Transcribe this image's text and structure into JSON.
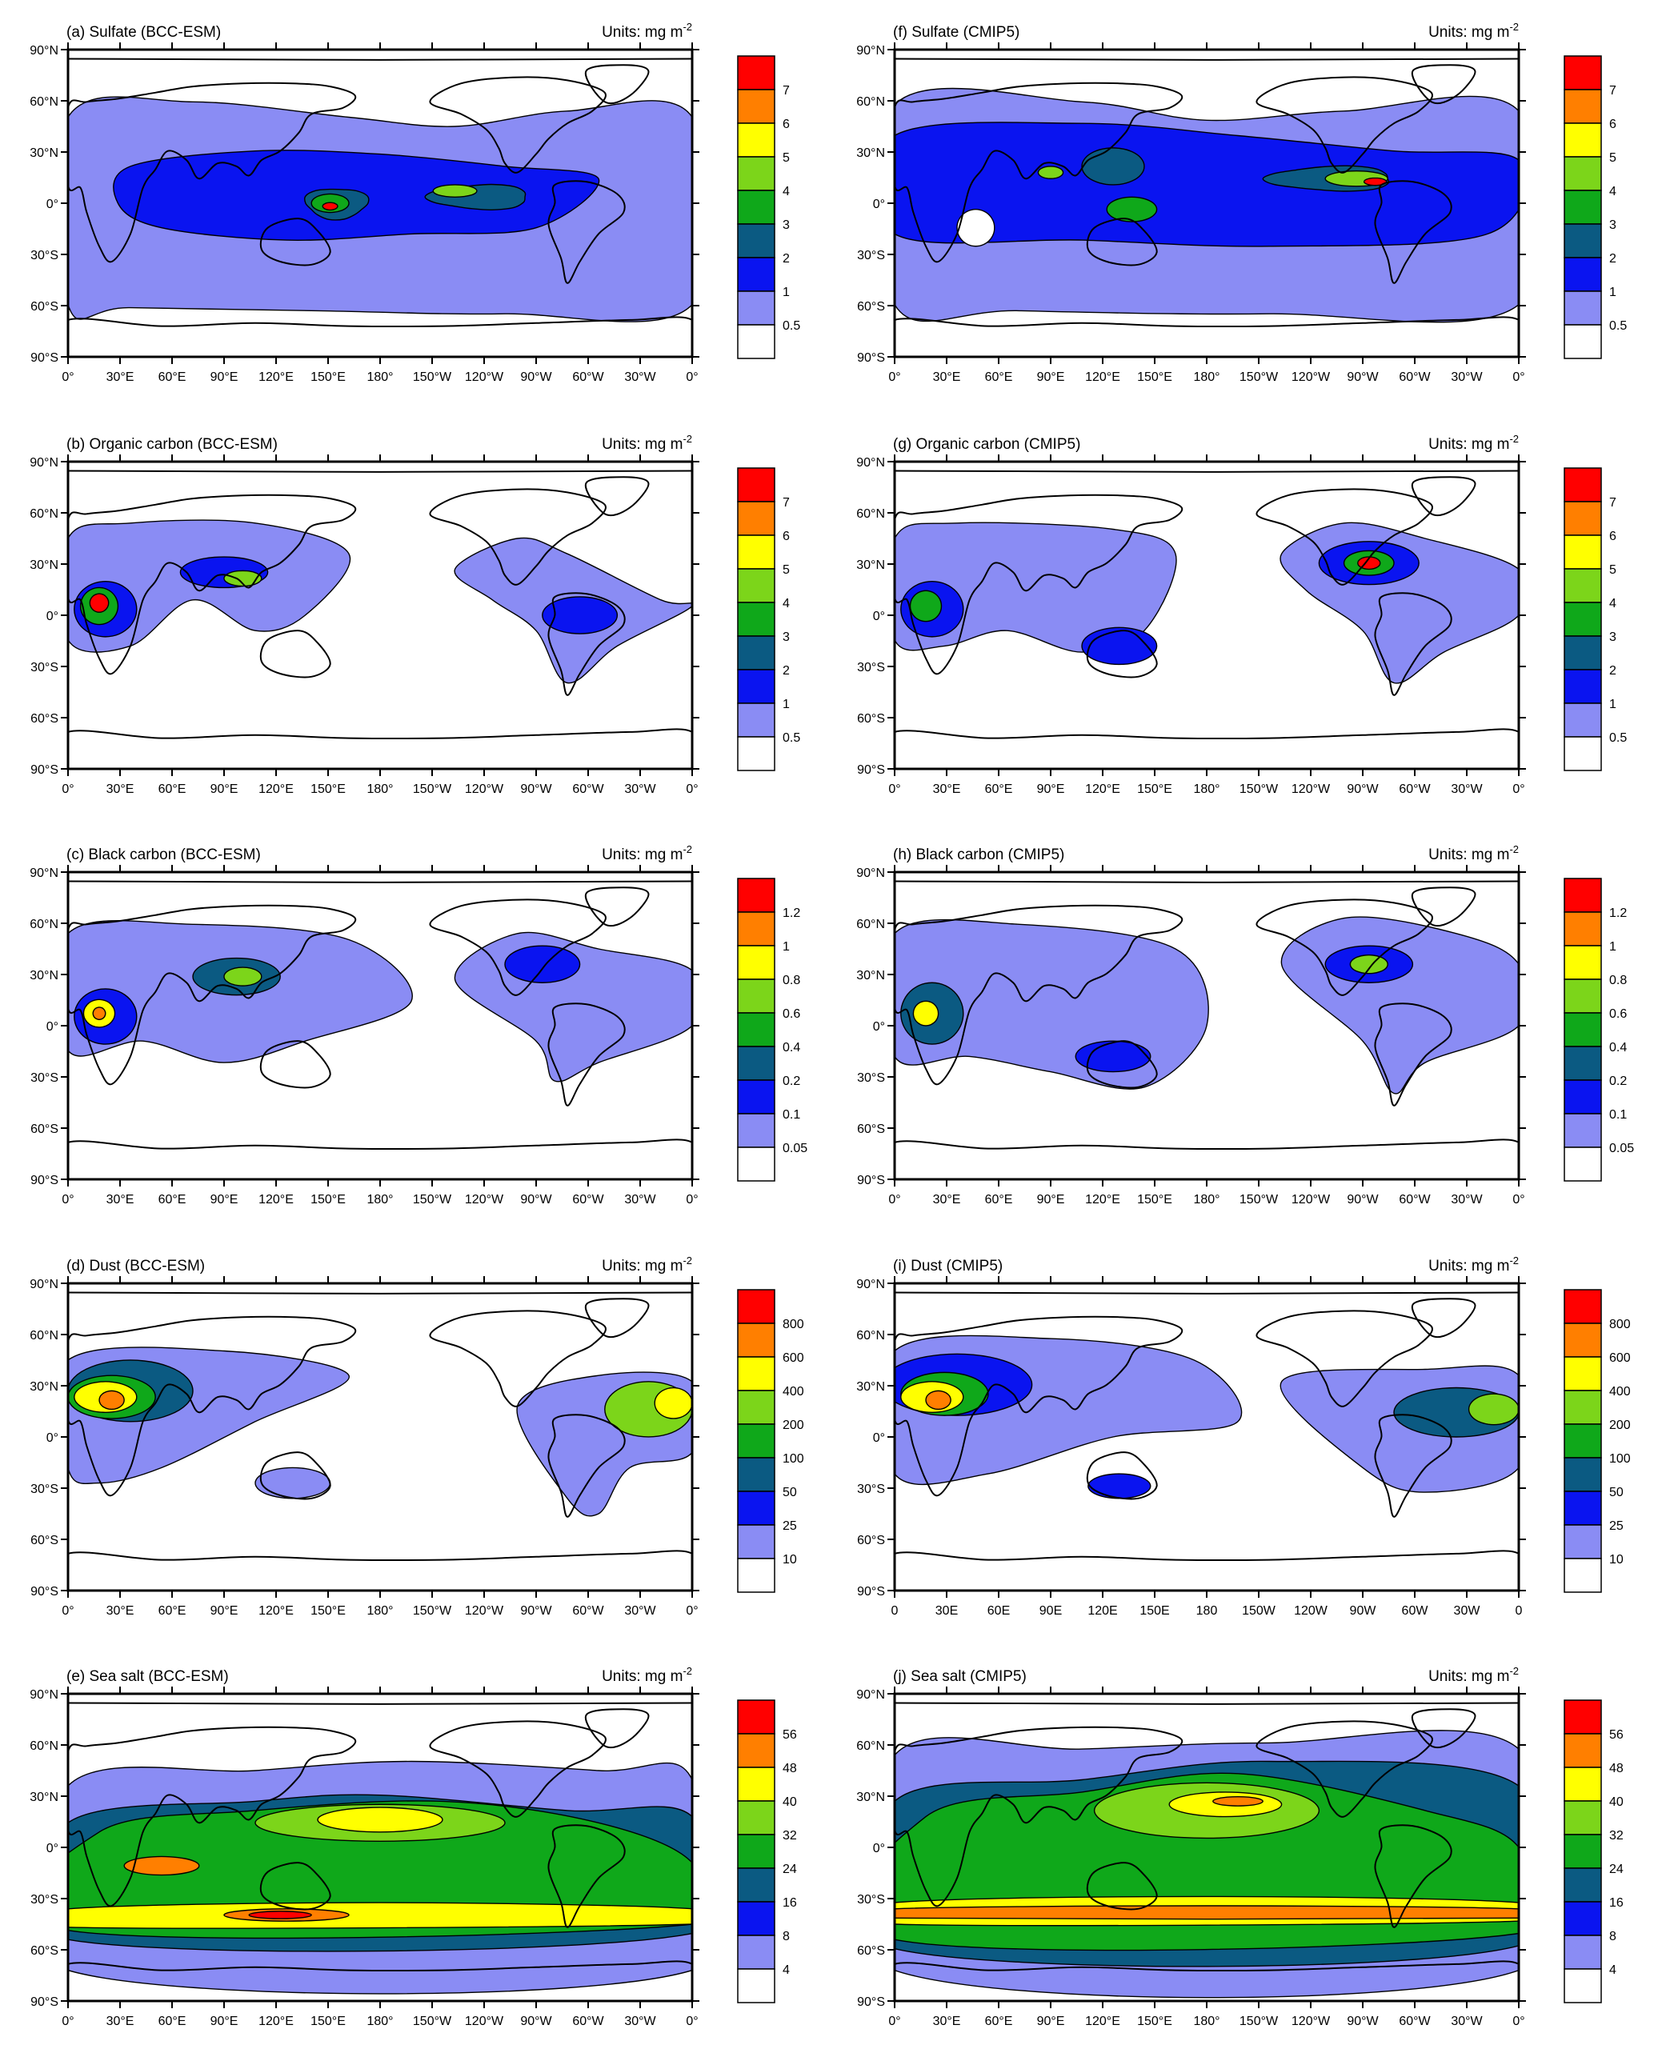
{
  "figure": {
    "units_text": "Units: mg m",
    "units_exp": "-2",
    "lat_ticks": [
      "90°N",
      "60°N",
      "30°N",
      "0°",
      "30°S",
      "60°S",
      "90°S"
    ],
    "lon_ticks_deg": [
      "0°",
      "30°E",
      "60°E",
      "90°E",
      "120°E",
      "150°E",
      "180°",
      "150°W",
      "120°W",
      "90°W",
      "60°W",
      "30°W",
      "0°"
    ],
    "lon_ticks_plain": [
      "0",
      "30E",
      "60E",
      "90E",
      "120E",
      "150E",
      "180",
      "150W",
      "120W",
      "90W",
      "60W",
      "30W",
      "0"
    ]
  },
  "palette": {
    "levels": [
      "#ffffff",
      "#8a8cf4",
      "#0a14f0",
      "#0b5a82",
      "#0fa81a",
      "#7cd51a",
      "#ffff00",
      "#ff7f00",
      "#ff0000"
    ],
    "land_outline": "#000000",
    "background": "#ffffff"
  },
  "panels": [
    {
      "id": "a",
      "title": "(a) Sulfate (BCC-ESM)",
      "col": 0,
      "row": 0,
      "lon_style": "deg",
      "colorbar": [
        "7",
        "6",
        "5",
        "4",
        "3",
        "2",
        "1",
        "0.5"
      ]
    },
    {
      "id": "f",
      "title": "(f) Sulfate (CMIP5)",
      "col": 1,
      "row": 0,
      "lon_style": "deg",
      "colorbar": [
        "7",
        "6",
        "5",
        "4",
        "3",
        "2",
        "1",
        "0.5"
      ]
    },
    {
      "id": "b",
      "title": "(b) Organic carbon (BCC-ESM)",
      "col": 0,
      "row": 1,
      "lon_style": "deg",
      "colorbar": [
        "7",
        "6",
        "5",
        "4",
        "3",
        "2",
        "1",
        "0.5"
      ]
    },
    {
      "id": "g",
      "title": "(g) Organic carbon (CMIP5)",
      "col": 1,
      "row": 1,
      "lon_style": "deg",
      "colorbar": [
        "7",
        "6",
        "5",
        "4",
        "3",
        "2",
        "1",
        "0.5"
      ]
    },
    {
      "id": "c",
      "title": "(c) Black carbon (BCC-ESM)",
      "col": 0,
      "row": 2,
      "lon_style": "deg",
      "colorbar": [
        "1.2",
        "1",
        "0.8",
        "0.6",
        "0.4",
        "0.2",
        "0.1",
        "0.05"
      ]
    },
    {
      "id": "h",
      "title": "(h) Black carbon (CMIP5)",
      "col": 1,
      "row": 2,
      "lon_style": "deg",
      "colorbar": [
        "1.2",
        "1",
        "0.8",
        "0.6",
        "0.4",
        "0.2",
        "0.1",
        "0.05"
      ]
    },
    {
      "id": "d",
      "title": "(d) Dust (BCC-ESM)",
      "col": 0,
      "row": 3,
      "lon_style": "deg",
      "colorbar": [
        "800",
        "600",
        "400",
        "200",
        "100",
        "50",
        "25",
        "10"
      ]
    },
    {
      "id": "i",
      "title": "(i) Dust (CMIP5)",
      "col": 1,
      "row": 3,
      "lon_style": "plain",
      "colorbar": [
        "800",
        "600",
        "400",
        "200",
        "100",
        "50",
        "25",
        "10"
      ]
    },
    {
      "id": "e",
      "title": "(e) Sea salt (BCC-ESM)",
      "col": 0,
      "row": 4,
      "lon_style": "deg",
      "colorbar": [
        "56",
        "48",
        "40",
        "32",
        "24",
        "16",
        "8",
        "4"
      ]
    },
    {
      "id": "j",
      "title": "(j) Sea salt (CMIP5)",
      "col": 1,
      "row": 4,
      "lon_style": "deg",
      "colorbar": [
        "56",
        "48",
        "40",
        "32",
        "24",
        "16",
        "8",
        "4"
      ]
    }
  ]
}
